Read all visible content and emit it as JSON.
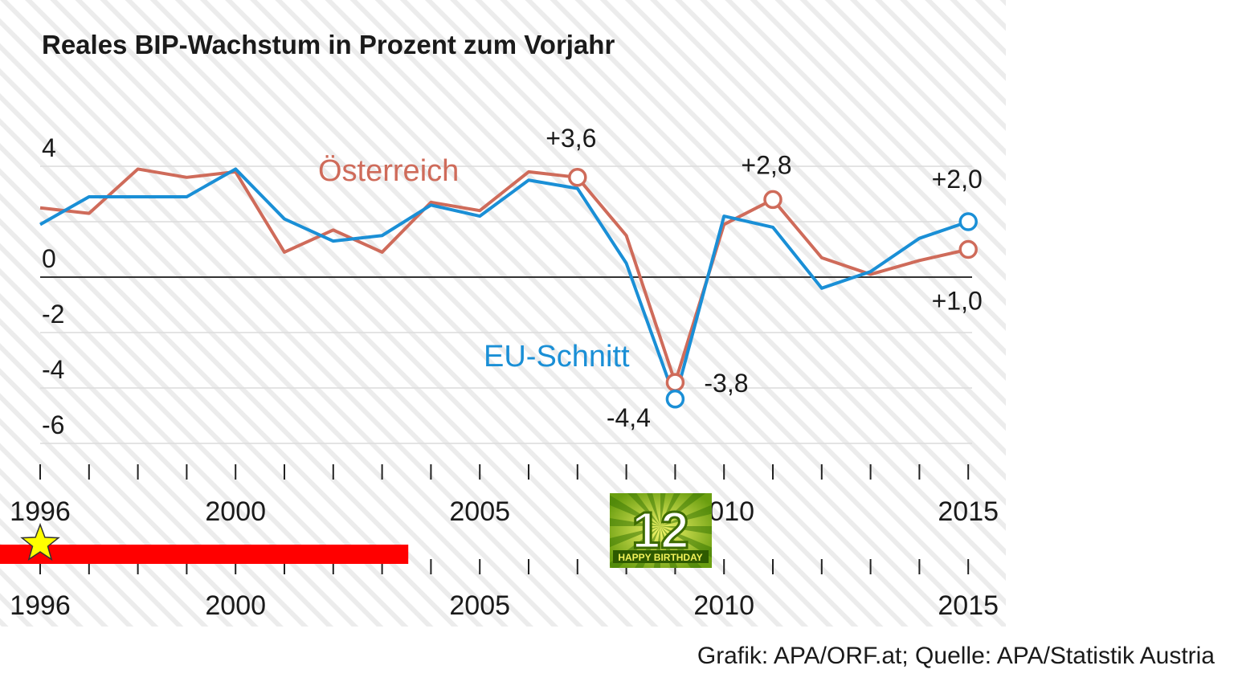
{
  "chart_data": {
    "type": "line",
    "title": "Reales BIP-Wachstum in Prozent zum Vorjahr",
    "x": [
      1996,
      1997,
      1998,
      1999,
      2000,
      2001,
      2002,
      2003,
      2004,
      2005,
      2006,
      2007,
      2008,
      2009,
      2010,
      2011,
      2012,
      2013,
      2014,
      2015
    ],
    "series": [
      {
        "name": "Österreich",
        "color": "#cf6b5a",
        "values": [
          2.5,
          2.3,
          3.9,
          3.6,
          3.8,
          0.9,
          1.7,
          0.9,
          2.7,
          2.4,
          3.8,
          3.6,
          1.5,
          -3.8,
          1.9,
          2.8,
          0.7,
          0.1,
          0.6,
          1.0
        ]
      },
      {
        "name": "EU-Schnitt",
        "color": "#1a8fd6",
        "values": [
          1.9,
          2.9,
          2.9,
          2.9,
          3.9,
          2.1,
          1.3,
          1.5,
          2.6,
          2.2,
          3.5,
          3.2,
          0.5,
          -4.4,
          2.2,
          1.8,
          -0.4,
          0.2,
          1.4,
          2.0
        ]
      }
    ],
    "yticks": [
      "4",
      "0",
      "-2",
      "-4",
      "-6"
    ],
    "xtick_labels": [
      "1996",
      "2000",
      "2005",
      "2010",
      "2015"
    ],
    "annotations": {
      "at_plus36": "+3,6",
      "at_plus28": "+2,8",
      "eu_2015": "+2,0",
      "at_2015": "+1,0",
      "at_2009": "-3,8",
      "eu_2009": "-4,4"
    },
    "grid": true,
    "legend": "inline labels"
  },
  "timeline": {
    "labels": [
      "1996",
      "2000",
      "2005",
      "2010",
      "2015"
    ],
    "progress": 0.42,
    "marker_icon": "star-icon",
    "bar_color": "#ff0000"
  },
  "badge": {
    "number": "12",
    "text": "HAPPY BIRTHDAY"
  },
  "credit": "Grafik: APA/ORF.at; Quelle: APA/Statistik Austria"
}
